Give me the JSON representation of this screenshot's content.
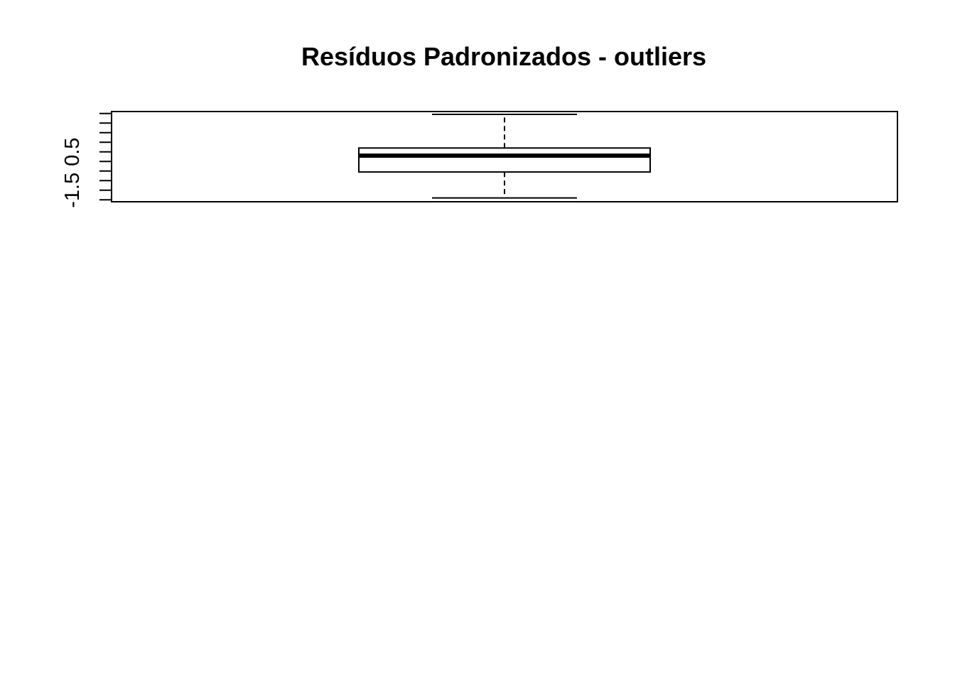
{
  "chart_data": {
    "type": "boxplot",
    "title": "Resíduos Padronizados - outliers",
    "xlabel": "",
    "ylabel": "",
    "ylim": [
      -2.1,
      2.6
    ],
    "y_ticks": [
      -2.0,
      -1.5,
      -1.0,
      -0.5,
      0.0,
      0.5,
      1.0,
      1.5,
      2.0,
      2.5
    ],
    "y_tick_labels": [
      "-1.5",
      "0.5"
    ],
    "labeled_tick_values": [
      -1.5,
      0.5
    ],
    "box": {
      "whisker_low": -1.9,
      "q1": -0.55,
      "median": 0.3,
      "q3": 0.7,
      "whisker_high": 2.45
    },
    "grid": false,
    "colors": {
      "stroke": "#000000",
      "background": "#ffffff"
    }
  }
}
